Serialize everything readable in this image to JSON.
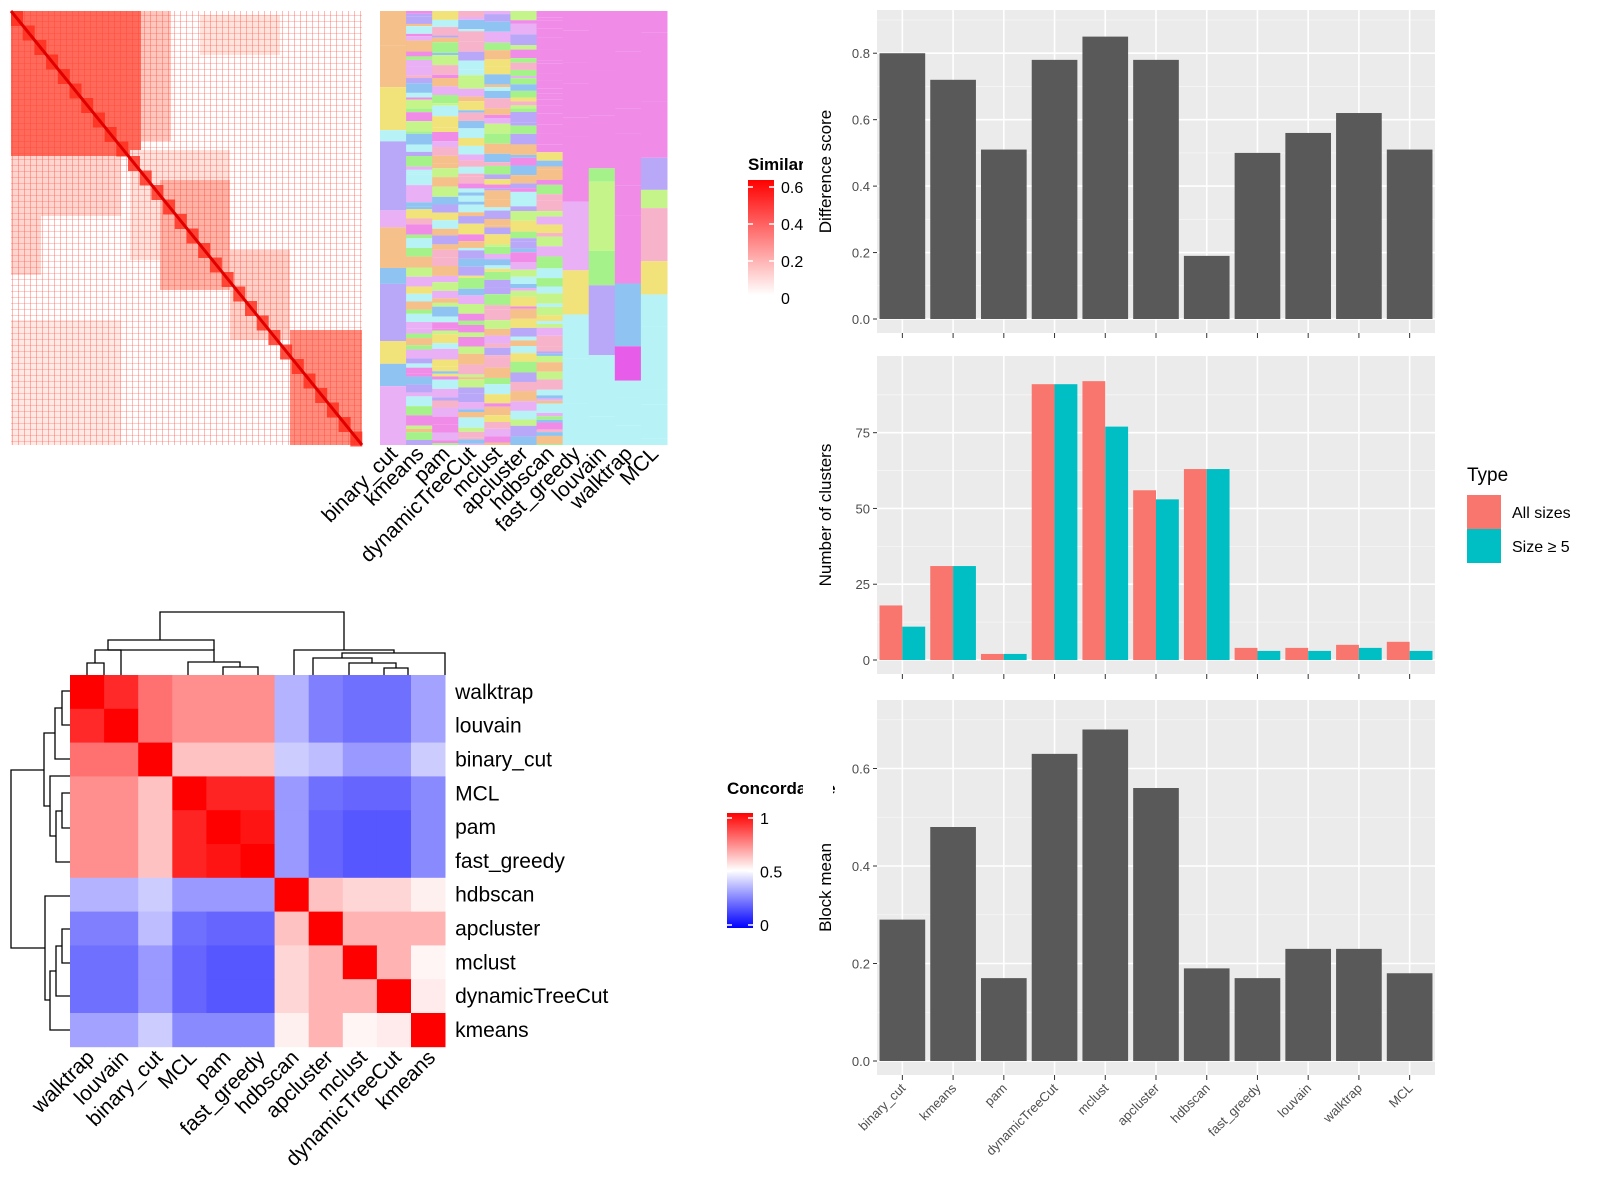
{
  "chart_data": [
    {
      "type": "heatmap",
      "id": "similarity",
      "legend": {
        "title": "Similarity",
        "ticks": [
          "0.6",
          "0.4",
          "0.2",
          "0"
        ],
        "colors": [
          "#ffffff",
          "#ff0000"
        ]
      }
    },
    {
      "type": "heatmap",
      "id": "cluster_assignments",
      "columns": [
        "binary_cut",
        "kmeans",
        "pam",
        "dynamicTreeCut",
        "mclust",
        "apcluster",
        "hdbscan",
        "fast_greedy",
        "louvain",
        "walktrap",
        "MCL"
      ]
    },
    {
      "type": "heatmap",
      "id": "concordance",
      "labels": [
        "walktrap",
        "louvain",
        "binary_cut",
        "MCL",
        "pam",
        "fast_greedy",
        "hdbscan",
        "apcluster",
        "mclust",
        "dynamicTreeCut",
        "kmeans"
      ],
      "values": [
        [
          1.0,
          0.92,
          0.78,
          0.72,
          0.72,
          0.72,
          0.35,
          0.25,
          0.22,
          0.22,
          0.32
        ],
        [
          0.92,
          1.0,
          0.78,
          0.72,
          0.72,
          0.72,
          0.35,
          0.25,
          0.22,
          0.22,
          0.32
        ],
        [
          0.78,
          0.78,
          1.0,
          0.62,
          0.62,
          0.62,
          0.4,
          0.37,
          0.3,
          0.3,
          0.4
        ],
        [
          0.72,
          0.72,
          0.62,
          1.0,
          0.93,
          0.93,
          0.3,
          0.22,
          0.2,
          0.2,
          0.27
        ],
        [
          0.72,
          0.72,
          0.62,
          0.93,
          1.0,
          0.96,
          0.3,
          0.2,
          0.17,
          0.17,
          0.27
        ],
        [
          0.72,
          0.72,
          0.62,
          0.93,
          0.96,
          1.0,
          0.3,
          0.2,
          0.17,
          0.17,
          0.27
        ],
        [
          0.35,
          0.35,
          0.4,
          0.3,
          0.3,
          0.3,
          1.0,
          0.62,
          0.58,
          0.58,
          0.53
        ],
        [
          0.25,
          0.25,
          0.37,
          0.22,
          0.2,
          0.2,
          0.62,
          1.0,
          0.65,
          0.65,
          0.65
        ],
        [
          0.22,
          0.22,
          0.3,
          0.2,
          0.17,
          0.17,
          0.58,
          0.65,
          1.0,
          0.65,
          0.52
        ],
        [
          0.22,
          0.22,
          0.3,
          0.2,
          0.17,
          0.17,
          0.58,
          0.65,
          0.65,
          1.0,
          0.54
        ],
        [
          0.32,
          0.32,
          0.4,
          0.27,
          0.27,
          0.27,
          0.53,
          0.65,
          0.52,
          0.54,
          1.0
        ]
      ],
      "legend": {
        "title": "Concordance",
        "ticks": [
          "1",
          "0.5",
          "0"
        ],
        "colors": [
          "#0000ff",
          "#ffffff",
          "#ff0000"
        ]
      }
    },
    {
      "type": "bar",
      "id": "difference",
      "categories": [
        "binary_cut",
        "kmeans",
        "pam",
        "dynamicTreeCut",
        "mclust",
        "apcluster",
        "hdbscan",
        "fast_greedy",
        "louvain",
        "walktrap",
        "MCL"
      ],
      "values": [
        0.8,
        0.72,
        0.51,
        0.78,
        0.85,
        0.78,
        0.19,
        0.5,
        0.56,
        0.62,
        0.51
      ],
      "ylabel": "Difference score",
      "ylim": [
        0,
        0.9
      ],
      "yticks": [
        "0.0",
        "0.2",
        "0.4",
        "0.6",
        "0.8"
      ],
      "bar_color": "#595959"
    },
    {
      "type": "bar",
      "id": "nclusters",
      "categories": [
        "binary_cut",
        "kmeans",
        "pam",
        "dynamicTreeCut",
        "mclust",
        "apcluster",
        "hdbscan",
        "fast_greedy",
        "louvain",
        "walktrap",
        "MCL"
      ],
      "series": [
        {
          "name": "All sizes",
          "values": [
            18,
            31,
            2,
            91,
            92,
            56,
            63,
            4,
            4,
            5,
            6
          ],
          "color": "#F8766D"
        },
        {
          "name": "Size ≥ 5",
          "values": [
            11,
            31,
            2,
            91,
            77,
            53,
            63,
            3,
            3,
            4,
            3
          ],
          "color": "#00BFC4"
        }
      ],
      "ylabel": "Number of clusters",
      "ylim": [
        0,
        97
      ],
      "yticks": [
        "0",
        "25",
        "50",
        "75"
      ],
      "legend": {
        "title": "Type",
        "position": "right"
      }
    },
    {
      "type": "bar",
      "id": "blockmean",
      "categories": [
        "binary_cut",
        "kmeans",
        "pam",
        "dynamicTreeCut",
        "mclust",
        "apcluster",
        "hdbscan",
        "fast_greedy",
        "louvain",
        "walktrap",
        "MCL"
      ],
      "values": [
        0.29,
        0.48,
        0.17,
        0.63,
        0.68,
        0.56,
        0.19,
        0.17,
        0.23,
        0.23,
        0.18
      ],
      "ylabel": "Block mean",
      "ylim": [
        0,
        0.72
      ],
      "yticks": [
        "0.0",
        "0.2",
        "0.4",
        "0.6"
      ],
      "bar_color": "#595959"
    }
  ]
}
